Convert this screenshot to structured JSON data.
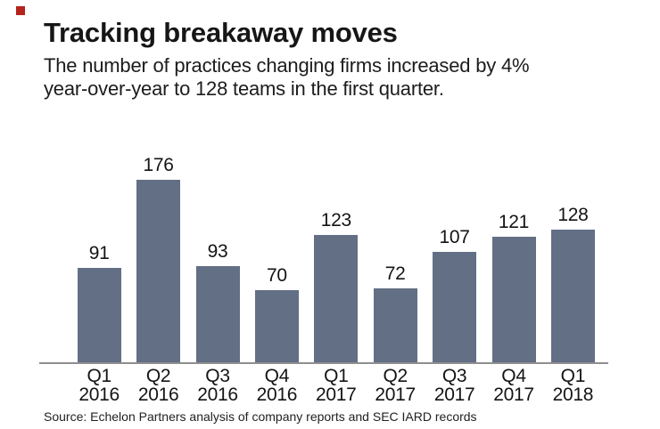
{
  "chart_data": {
    "type": "bar",
    "title": "Tracking breakaway moves",
    "subtitle_lines": [
      "The number of practices changing firms increased by 4%",
      "year-over-year to 128 teams in the first quarter."
    ],
    "categories": [
      "Q1 2016",
      "Q2 2016",
      "Q3 2016",
      "Q4 2016",
      "Q1 2017",
      "Q2 2017",
      "Q3 2017",
      "Q4 2017",
      "Q1 2018"
    ],
    "values": [
      91,
      176,
      93,
      70,
      123,
      72,
      107,
      121,
      128
    ],
    "source": "Source: Echelon Partners analysis of company reports and SEC IARD records",
    "bar_color": "#636f85",
    "axis_color": "#8e8e8e",
    "text_color": "#141414",
    "accent_square_color": "#b5231d",
    "xlabel": "",
    "ylabel": "",
    "ylim": [
      0,
      185
    ],
    "grid": false,
    "legend": false,
    "value_labels": true
  }
}
